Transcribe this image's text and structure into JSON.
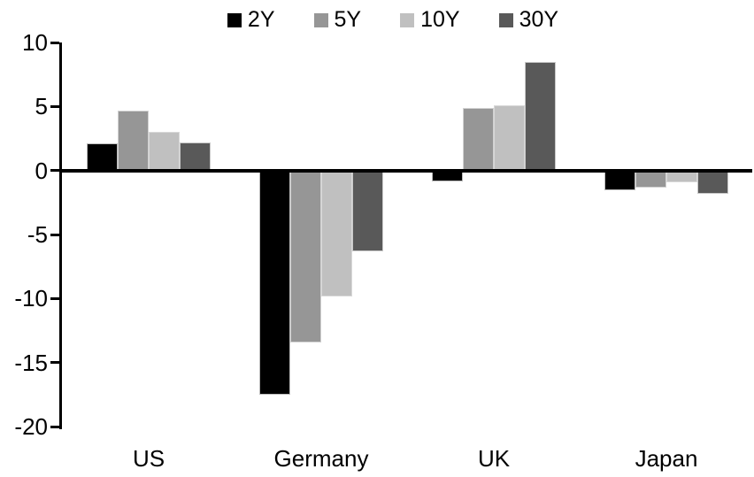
{
  "chart_data": {
    "type": "bar",
    "title": "",
    "categories": [
      "US",
      "Germany",
      "UK",
      "Japan"
    ],
    "series": [
      {
        "name": "2Y",
        "color": "#000000",
        "values": [
          2.1,
          -17.5,
          -0.8,
          -1.5
        ]
      },
      {
        "name": "5Y",
        "color": "#969696",
        "values": [
          4.7,
          -13.4,
          4.9,
          -1.3
        ]
      },
      {
        "name": "10Y",
        "color": "#c0c0c0",
        "values": [
          3.0,
          -9.8,
          5.1,
          -0.9
        ]
      },
      {
        "name": "30Y",
        "color": "#595959",
        "values": [
          2.2,
          -6.3,
          8.5,
          -1.8
        ]
      }
    ],
    "ylim": [
      -20,
      10
    ],
    "yticks": [
      10,
      5,
      0,
      -5,
      -10,
      -15,
      -20
    ],
    "grid": false,
    "legend_position": "top",
    "axis_color": "#000000",
    "background": "#ffffff",
    "xlabel": "",
    "ylabel": ""
  }
}
